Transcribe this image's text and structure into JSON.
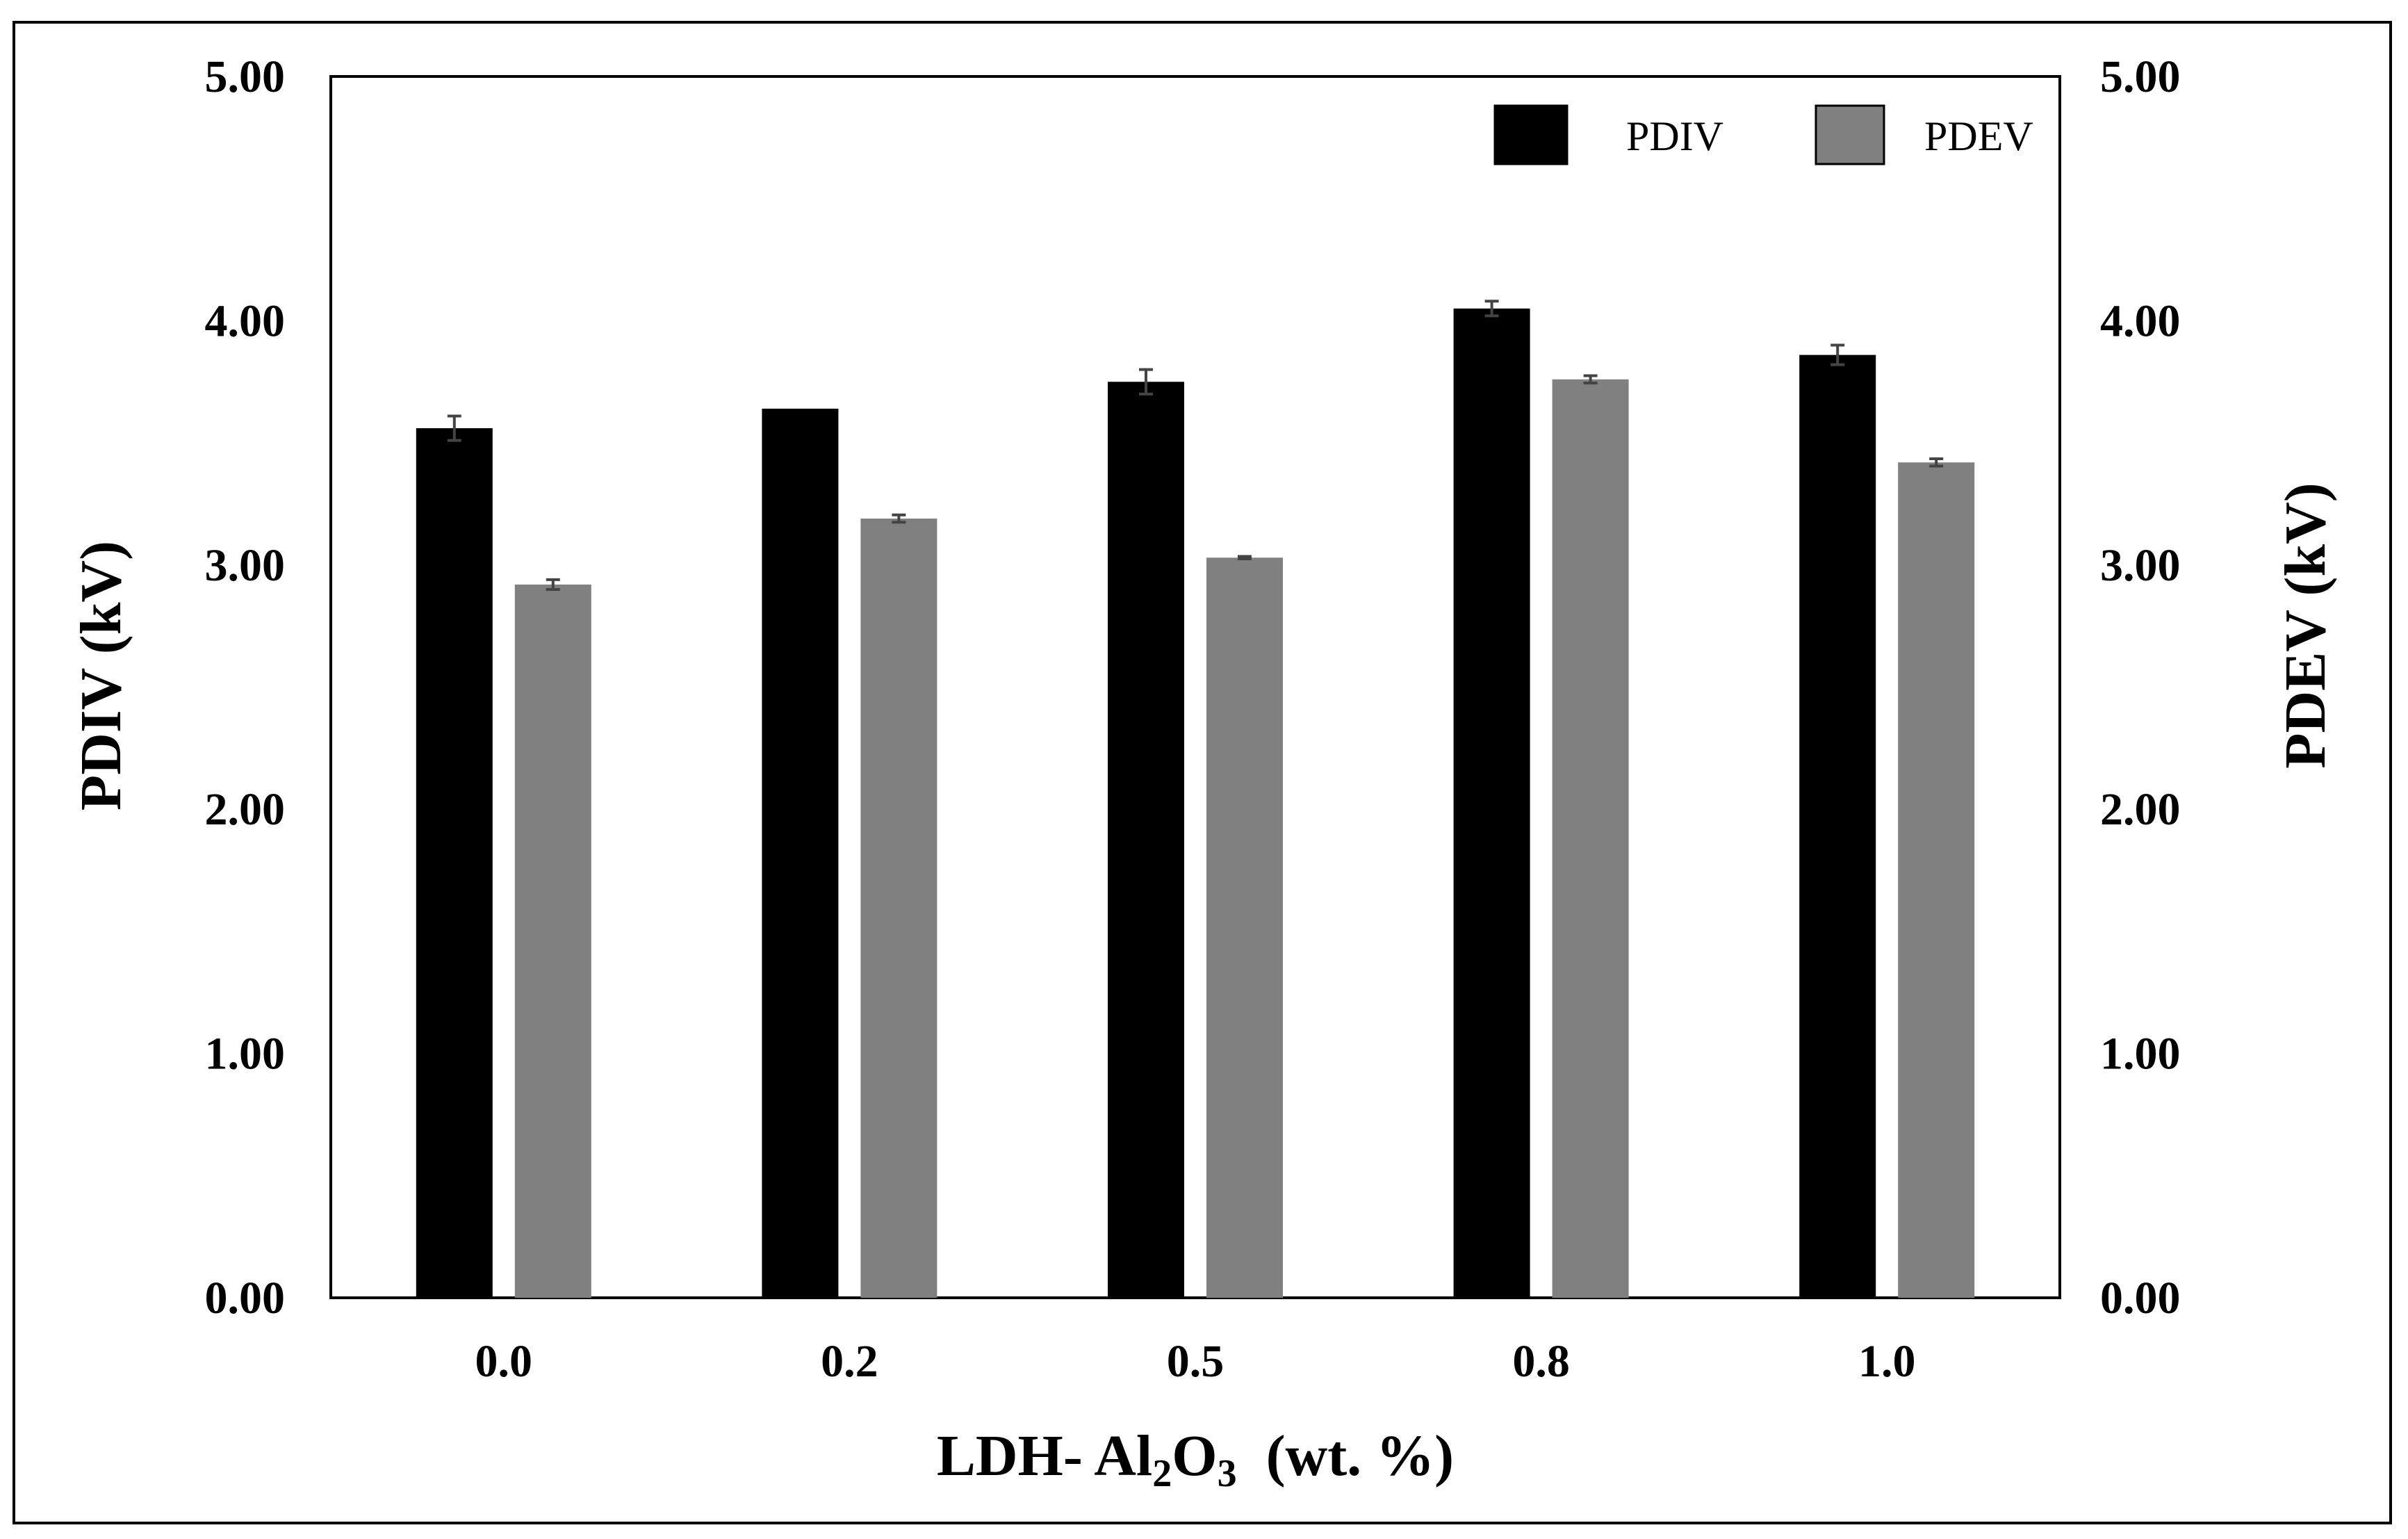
{
  "chart_data": {
    "type": "bar",
    "categories": [
      "0.0",
      "0.2",
      "0.5",
      "0.8",
      "1.0"
    ],
    "series": [
      {
        "name": "PDIV",
        "color": "#000000",
        "values": [
          3.56,
          3.64,
          3.75,
          4.05,
          3.86
        ],
        "errors": [
          0.05,
          0.0,
          0.05,
          0.03,
          0.04
        ]
      },
      {
        "name": "PDEV",
        "color": "#808080",
        "values": [
          2.92,
          3.19,
          3.03,
          3.76,
          3.42
        ],
        "errors": [
          0.02,
          0.015,
          0.005,
          0.015,
          0.015
        ]
      }
    ],
    "ylim": [
      0,
      5
    ],
    "y_ticks": [
      "0.00",
      "1.00",
      "2.00",
      "3.00",
      "4.00",
      "5.00"
    ],
    "ylabel": "PDIV (kV)",
    "y2label": "PDEV (kV)",
    "xlabel": {
      "prefix": "LDH- Al",
      "sub1": "2",
      "mid": "O",
      "sub2": "3",
      "suffix": "  (wt. %)"
    },
    "legend_position": "top-right"
  }
}
